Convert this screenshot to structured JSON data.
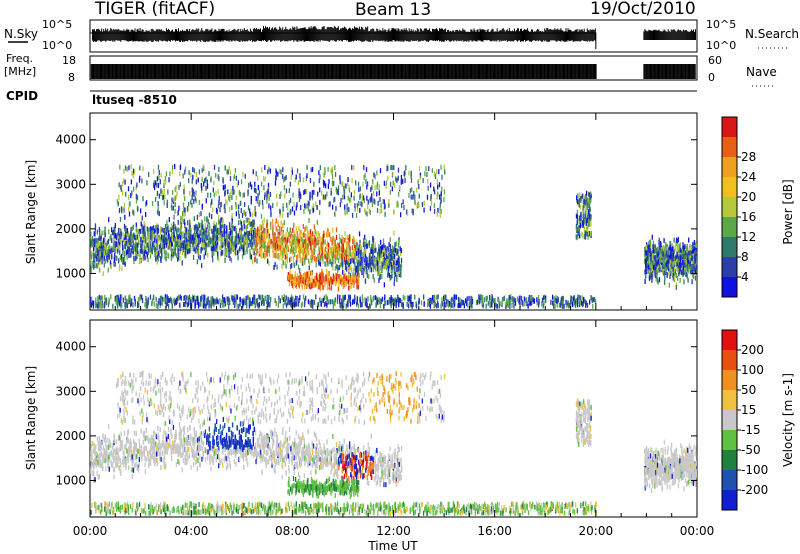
{
  "header": {
    "radar": "TIGER (fitACF)",
    "beam": "Beam 13",
    "date": "19/Oct/2010"
  },
  "panels": {
    "nsky_label": "N.Sky",
    "nsearch_label": "N.Search",
    "nsky_ticks": [
      "10^5",
      "10^0"
    ],
    "nsearch_ticks": [
      "10^5",
      "10^0"
    ],
    "freq_label_1": "Freq.",
    "freq_label_2": "[MHz]",
    "freq_ticks": [
      "18",
      "8"
    ],
    "nave_label": "Nave",
    "nave_ticks": [
      "60",
      "0"
    ],
    "cpid_label": "CPID",
    "cpid_value": "ltuseq -8510"
  },
  "chart_data": [
    {
      "type": "heatmap",
      "name": "power",
      "ylabel": "Slant Range [km]",
      "ylim": [
        180,
        4600
      ],
      "yticks": [
        "1000",
        "2000",
        "3000",
        "4000"
      ],
      "xlim": [
        0,
        24
      ],
      "colorbar": {
        "label": "Power [dB]",
        "ticks": [
          "4",
          "8",
          "12",
          "16",
          "20",
          "24",
          "28"
        ],
        "colors": [
          "#1010e0",
          "#2a3fa8",
          "#2f7a6a",
          "#5aa84a",
          "#b5c93a",
          "#f0c020",
          "#f0a020",
          "#e86018",
          "#d81818"
        ]
      },
      "data_gaps_hours": [
        [
          20.0,
          21.8
        ]
      ]
    },
    {
      "type": "heatmap",
      "name": "velocity",
      "ylabel": "Slant Range [km]",
      "ylim": [
        180,
        4600
      ],
      "yticks": [
        "1000",
        "2000",
        "3000",
        "4000"
      ],
      "xlim": [
        0,
        24
      ],
      "xticks": [
        "00:00",
        "04:00",
        "08:00",
        "12:00",
        "16:00",
        "20:00",
        "00:00"
      ],
      "xlabel": "Time UT",
      "colorbar": {
        "label": "Velocity [m s-1]",
        "ticks": [
          "200",
          "100",
          "50",
          "15",
          "-15",
          "-50",
          "-100",
          "-200"
        ],
        "colors": [
          "#1020d0",
          "#2050b0",
          "#208040",
          "#60c040",
          "#c8c8c8",
          "#f0c040",
          "#f09020",
          "#e85010",
          "#e01010"
        ]
      },
      "data_gaps_hours": [
        [
          20.0,
          21.8
        ]
      ]
    }
  ]
}
